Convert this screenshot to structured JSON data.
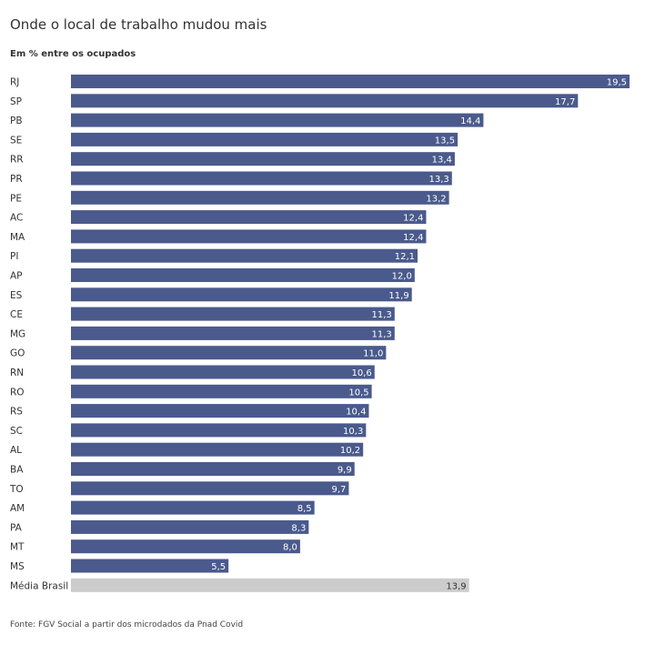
{
  "title": "Onde o local de trabalho mudou mais",
  "subtitle": "Em % entre os ocupados",
  "source": "Fonte: FGV Social a partir dos microdados da Pnad Covid",
  "colors": {
    "bar": "#4a5a8c",
    "average_bar": "#cccccc",
    "label_on_bar": "#ffffff",
    "label_on_average": "#333333"
  },
  "chart_data": {
    "type": "bar",
    "orientation": "horizontal",
    "categories": [
      "RJ",
      "SP",
      "PB",
      "SE",
      "RR",
      "PR",
      "PE",
      "AC",
      "MA",
      "PI",
      "AP",
      "ES",
      "CE",
      "MG",
      "GO",
      "RN",
      "RO",
      "RS",
      "SC",
      "AL",
      "BA",
      "TO",
      "AM",
      "PA",
      "MT",
      "MS",
      "Média Brasil"
    ],
    "values": [
      19.5,
      17.7,
      14.4,
      13.5,
      13.4,
      13.3,
      13.2,
      12.4,
      12.4,
      12.1,
      12.0,
      11.9,
      11.3,
      11.3,
      11.0,
      10.6,
      10.5,
      10.4,
      10.3,
      10.2,
      9.9,
      9.7,
      8.5,
      8.3,
      8.0,
      5.5,
      13.9
    ],
    "value_labels": [
      "19,5",
      "17,7",
      "14,4",
      "13,5",
      "13,4",
      "13,3",
      "13,2",
      "12,4",
      "12,4",
      "12,1",
      "12,0",
      "11,9",
      "11,3",
      "11,3",
      "11,0",
      "10,6",
      "10,5",
      "10,4",
      "10,3",
      "10,2",
      "9,9",
      "9,7",
      "8,5",
      "8,3",
      "8,0",
      "5,5",
      "13,9"
    ],
    "highlight_category": "Média Brasil",
    "xlim": [
      0,
      19.5
    ],
    "grid": false,
    "legend": "none"
  }
}
